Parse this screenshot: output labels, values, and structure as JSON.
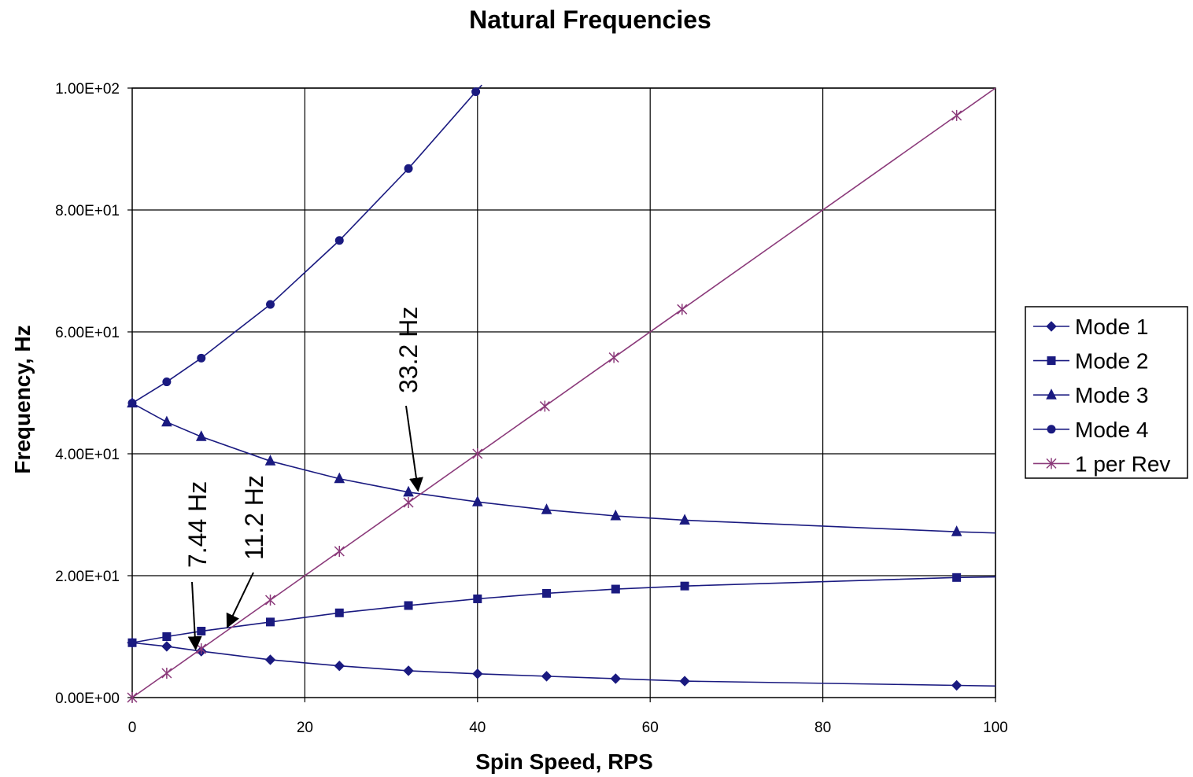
{
  "chart_data": {
    "type": "line",
    "title": "Natural Frequencies",
    "xlabel": "Spin Speed, RPS",
    "ylabel": "Frequency, Hz",
    "xlim": [
      0,
      100
    ],
    "ylim": [
      0,
      100
    ],
    "x_ticks": [
      "0",
      "20",
      "40",
      "60",
      "80",
      "100"
    ],
    "y_ticks": [
      "0.00E+00",
      "2.00E+01",
      "4.00E+01",
      "6.00E+01",
      "8.00E+01",
      "1.00E+02"
    ],
    "grid": true,
    "legend_position": "right",
    "colors": {
      "series": "#1a1a80",
      "per_rev": "#8b3a7a",
      "grid": "#000000"
    },
    "series": [
      {
        "name": "Mode 1",
        "marker": "diamond",
        "line_end": [
          100,
          1.9
        ],
        "x": [
          0,
          4,
          8,
          16,
          24,
          32,
          40,
          48,
          56,
          64,
          95.5
        ],
        "y": [
          9.0,
          8.4,
          7.6,
          6.2,
          5.2,
          4.4,
          3.9,
          3.5,
          3.1,
          2.7,
          2.0
        ]
      },
      {
        "name": "Mode 2",
        "marker": "square",
        "line_end": [
          100,
          19.8
        ],
        "x": [
          0,
          4,
          8,
          16,
          24,
          32,
          40,
          48,
          56,
          64,
          95.5
        ],
        "y": [
          9.0,
          10.0,
          10.9,
          12.4,
          13.9,
          15.1,
          16.2,
          17.1,
          17.8,
          18.3,
          19.7
        ]
      },
      {
        "name": "Mode 3",
        "marker": "triangle",
        "line_end": [
          100,
          27.0
        ],
        "x": [
          0,
          4,
          8,
          16,
          24,
          32,
          40,
          48,
          56,
          64,
          95.5
        ],
        "y": [
          48.3,
          45.2,
          42.8,
          38.8,
          35.9,
          33.7,
          32.1,
          30.8,
          29.8,
          29.1,
          27.2
        ]
      },
      {
        "name": "Mode 4",
        "marker": "circle",
        "line_end": [
          40.5,
          100.5
        ],
        "x": [
          0,
          4,
          8,
          16,
          24,
          32,
          39.8
        ],
        "y": [
          48.3,
          51.8,
          55.7,
          64.5,
          75.0,
          86.8,
          99.4
        ]
      },
      {
        "name": "1 per Rev",
        "marker": "star",
        "line_end": [
          100,
          100
        ],
        "x": [
          0,
          4,
          8,
          16,
          24,
          32,
          40,
          47.8,
          55.8,
          63.7,
          95.5
        ],
        "y": [
          0,
          4,
          8,
          16,
          24,
          32,
          40,
          47.8,
          55.8,
          63.7,
          95.5
        ]
      }
    ],
    "annotations": [
      {
        "text": "7.44 Hz",
        "point": [
          7.44,
          7.44
        ]
      },
      {
        "text": "11.2 Hz",
        "point": [
          11.2,
          11.2
        ]
      },
      {
        "text": "33.2 Hz",
        "point": [
          33.2,
          33.2
        ]
      }
    ]
  }
}
